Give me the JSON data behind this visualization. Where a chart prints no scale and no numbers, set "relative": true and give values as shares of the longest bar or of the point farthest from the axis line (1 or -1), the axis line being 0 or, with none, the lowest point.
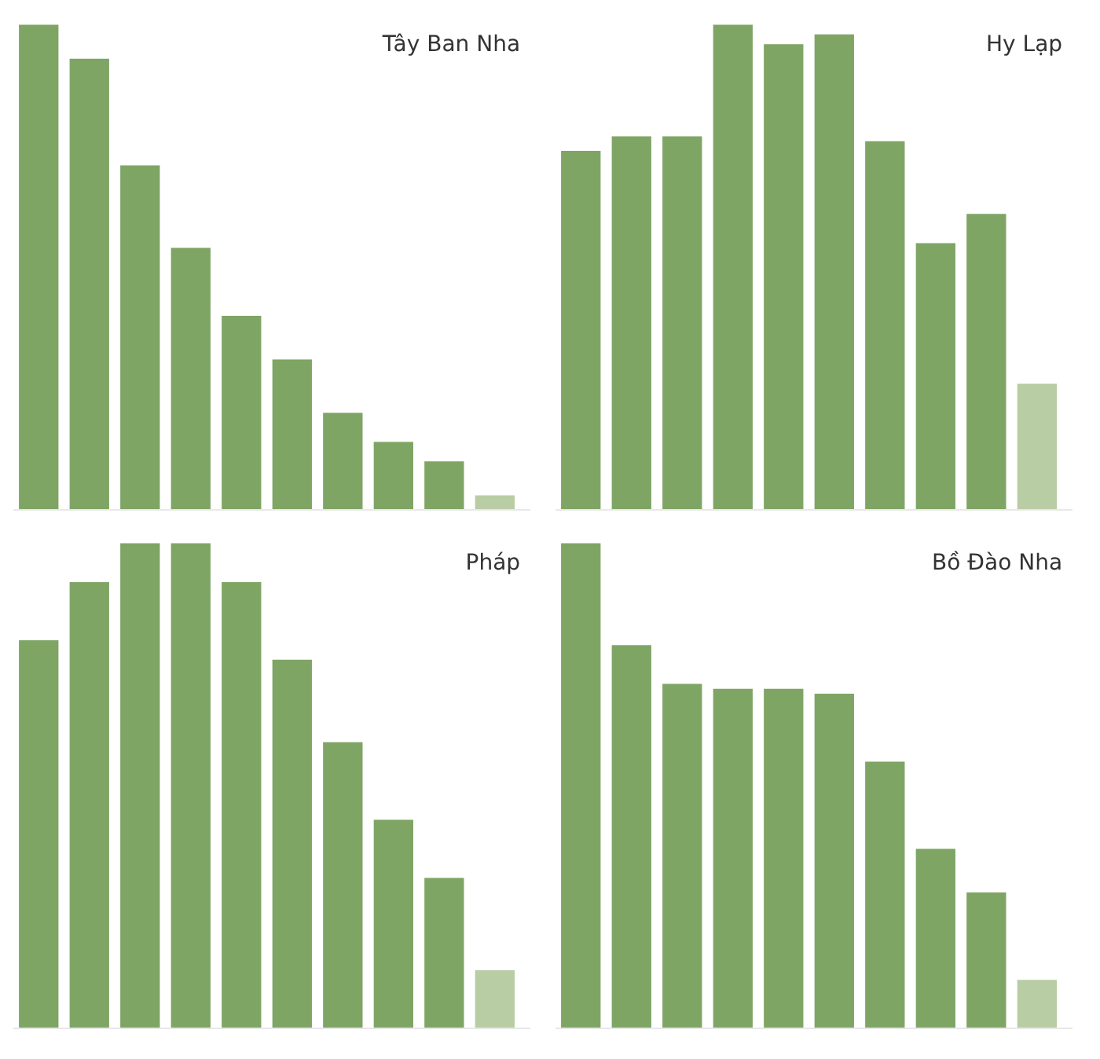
{
  "chart_data": [
    {
      "type": "bar",
      "title": "Tây Ban Nha",
      "relative": true,
      "categories": [
        null,
        null,
        null,
        null,
        null,
        null,
        null,
        null,
        null,
        null
      ],
      "values": [
        1,
        0.93,
        0.71,
        0.54,
        0.4,
        0.31,
        0.2,
        0.14,
        0.1,
        0.03
      ],
      "colors": [
        "#7fa565",
        "#7fa565",
        "#7fa565",
        "#7fa565",
        "#7fa565",
        "#7fa565",
        "#7fa565",
        "#7fa565",
        "#7fa565",
        "#b9cda4"
      ]
    },
    {
      "type": "bar",
      "title": "Hy Lạp",
      "relative": true,
      "categories": [
        null,
        null,
        null,
        null,
        null,
        null,
        null,
        null,
        null,
        null
      ],
      "values": [
        0.74,
        0.77,
        0.77,
        1,
        0.96,
        0.98,
        0.76,
        0.55,
        0.61,
        0.26
      ],
      "colors": [
        "#7fa565",
        "#7fa565",
        "#7fa565",
        "#7fa565",
        "#7fa565",
        "#7fa565",
        "#7fa565",
        "#7fa565",
        "#7fa565",
        "#b9cda4"
      ]
    },
    {
      "type": "bar",
      "title": "Pháp",
      "relative": true,
      "categories": [
        null,
        null,
        null,
        null,
        null,
        null,
        null,
        null,
        null,
        null
      ],
      "values": [
        0.8,
        0.92,
        1,
        1,
        0.92,
        0.76,
        0.59,
        0.43,
        0.31,
        0.12
      ],
      "colors": [
        "#7fa565",
        "#7fa565",
        "#7fa565",
        "#7fa565",
        "#7fa565",
        "#7fa565",
        "#7fa565",
        "#7fa565",
        "#7fa565",
        "#b9cda4"
      ]
    },
    {
      "type": "bar",
      "title": "Bồ Đào Nha",
      "relative": true,
      "categories": [
        null,
        null,
        null,
        null,
        null,
        null,
        null,
        null,
        null,
        null
      ],
      "values": [
        1,
        0.79,
        0.71,
        0.7,
        0.7,
        0.69,
        0.55,
        0.37,
        0.28,
        0.1
      ],
      "colors": [
        "#7fa565",
        "#7fa565",
        "#7fa565",
        "#7fa565",
        "#7fa565",
        "#7fa565",
        "#7fa565",
        "#7fa565",
        "#7fa565",
        "#b9cda4"
      ]
    }
  ]
}
